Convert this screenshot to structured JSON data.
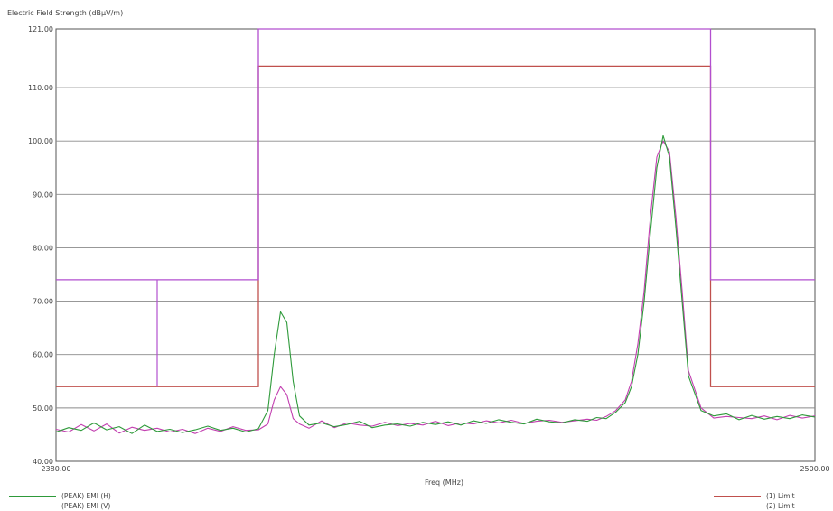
{
  "chart_data": {
    "type": "line",
    "ylabel": "Electric Field Strength (dBμV/m)",
    "xlabel": "Freq (MHz)",
    "xlim": [
      2380.0,
      2500.0
    ],
    "ylim": [
      40.0,
      121.0
    ],
    "x_ticks": [
      "2380.00",
      "2500.00"
    ],
    "y_ticks": [
      {
        "value": 40,
        "label": "40.00"
      },
      {
        "value": 50,
        "label": "50.00"
      },
      {
        "value": 60,
        "label": "60.00"
      },
      {
        "value": 70,
        "label": "70.00"
      },
      {
        "value": 80,
        "label": "80.00"
      },
      {
        "value": 90,
        "label": "90.00"
      },
      {
        "value": 100,
        "label": "100.00"
      },
      {
        "value": 110,
        "label": "110.00"
      },
      {
        "value": 121,
        "label": "121.00"
      }
    ],
    "grid": true,
    "series": [
      {
        "name": "(PEAK) EMI (H)",
        "color": "#2e9a3a",
        "x": [
          2380,
          2382,
          2384,
          2386,
          2388,
          2390,
          2392,
          2394,
          2396,
          2398,
          2400,
          2402,
          2404,
          2406,
          2408,
          2410,
          2412,
          2413.5,
          2414.5,
          2415.5,
          2416.5,
          2417.5,
          2418.5,
          2420,
          2422,
          2424,
          2426,
          2428,
          2430,
          2432,
          2434,
          2436,
          2438,
          2440,
          2442,
          2444,
          2446,
          2448,
          2450,
          2452,
          2454,
          2456,
          2458,
          2460,
          2462,
          2464,
          2465.5,
          2467,
          2468.5,
          2470,
          2471,
          2472,
          2473,
          2474,
          2475,
          2476,
          2477,
          2478,
          2479,
          2480,
          2482,
          2484,
          2486,
          2488,
          2490,
          2492,
          2494,
          2496,
          2498,
          2500
        ],
        "y": [
          45.5,
          46.3,
          45.8,
          47.2,
          45.9,
          46.5,
          45.2,
          46.8,
          45.6,
          46.0,
          45.4,
          45.9,
          46.6,
          45.8,
          46.2,
          45.5,
          46.1,
          49.5,
          60.0,
          68.0,
          66.0,
          55.0,
          48.5,
          46.8,
          47.2,
          46.5,
          46.9,
          47.5,
          46.3,
          46.8,
          47.0,
          46.6,
          47.3,
          46.9,
          47.4,
          46.8,
          47.6,
          47.1,
          47.8,
          47.3,
          47.0,
          47.9,
          47.4,
          47.2,
          47.8,
          47.5,
          48.2,
          48.0,
          49.2,
          51.0,
          54.0,
          60.0,
          70.0,
          83.0,
          95.0,
          101.0,
          97.0,
          84.0,
          70.0,
          56.0,
          49.5,
          48.5,
          48.9,
          47.8,
          48.6,
          47.9,
          48.4,
          48.0,
          48.7,
          48.3
        ]
      },
      {
        "name": "(PEAK) EMI (V)",
        "color": "#c23fb0",
        "x": [
          2380,
          2382,
          2384,
          2386,
          2388,
          2390,
          2392,
          2394,
          2396,
          2398,
          2400,
          2402,
          2404,
          2406,
          2408,
          2410,
          2412,
          2413.5,
          2414.5,
          2415.5,
          2416.5,
          2417.5,
          2418.5,
          2420,
          2422,
          2424,
          2426,
          2428,
          2430,
          2432,
          2434,
          2436,
          2438,
          2440,
          2442,
          2444,
          2446,
          2448,
          2450,
          2452,
          2454,
          2456,
          2458,
          2460,
          2462,
          2464,
          2465.5,
          2467,
          2468.5,
          2470,
          2471,
          2472,
          2473,
          2474,
          2475,
          2476,
          2477,
          2478,
          2479,
          2480,
          2482,
          2484,
          2486,
          2488,
          2490,
          2492,
          2494,
          2496,
          2498,
          2500
        ],
        "y": [
          46.0,
          45.5,
          46.9,
          45.7,
          47.0,
          45.3,
          46.4,
          45.8,
          46.2,
          45.5,
          46.0,
          45.2,
          46.2,
          45.6,
          46.5,
          45.8,
          45.9,
          47.0,
          51.5,
          54.0,
          52.5,
          48.0,
          47.0,
          46.2,
          47.6,
          46.3,
          47.2,
          46.8,
          46.6,
          47.3,
          46.7,
          47.1,
          46.8,
          47.5,
          46.7,
          47.2,
          47.0,
          47.6,
          47.2,
          47.7,
          47.1,
          47.5,
          47.7,
          47.3,
          47.6,
          47.9,
          47.7,
          48.4,
          49.5,
          51.5,
          55.0,
          62.0,
          72.0,
          86.0,
          97.0,
          100.0,
          98.0,
          86.0,
          72.0,
          57.0,
          50.0,
          48.1,
          48.4,
          48.2,
          48.0,
          48.5,
          47.8,
          48.6,
          48.1,
          48.5
        ]
      }
    ],
    "limits": [
      {
        "name": "(1) Limit",
        "color": "#c0504d",
        "x": [
          2380,
          2412,
          2412,
          2483.5,
          2483.5,
          2500
        ],
        "y": [
          54,
          54,
          114,
          114,
          54,
          54
        ]
      },
      {
        "name": "(2) Limit",
        "color": "#b24fcf",
        "x": [
          2380,
          2412,
          2412,
          2483.5,
          2483.5,
          2500
        ],
        "y": [
          74,
          74,
          121,
          121,
          74,
          74
        ]
      }
    ],
    "marker_x": 2396,
    "legend": [
      {
        "label": "(PEAK) EMI (H)",
        "color": "#2e9a3a",
        "position": "bottom-left"
      },
      {
        "label": "(PEAK) EMI (V)",
        "color": "#c23fb0",
        "position": "bottom-left"
      },
      {
        "label": "(1) Limit",
        "color": "#c0504d",
        "position": "bottom-right"
      },
      {
        "label": "(2) Limit",
        "color": "#b24fcf",
        "position": "bottom-right"
      }
    ]
  }
}
